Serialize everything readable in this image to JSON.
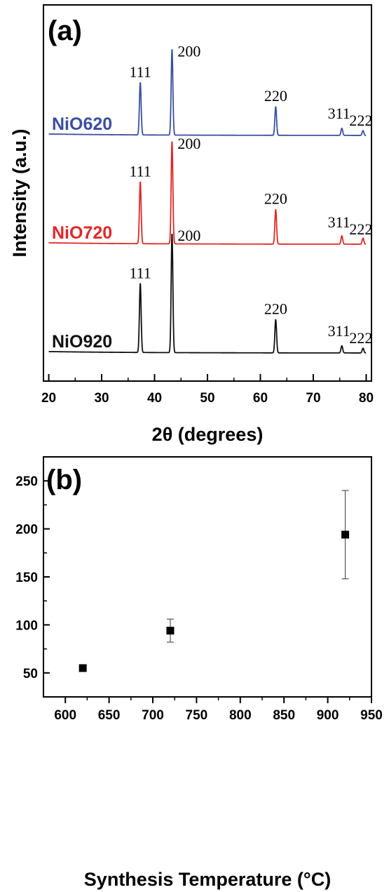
{
  "chart_data": [
    {
      "type": "line",
      "panel_label": "(a)",
      "xlabel": "2θ (degrees)",
      "ylabel": "Intensity (a.u.)",
      "xlim": [
        19,
        81
      ],
      "xticks": [
        "20",
        "30",
        "40",
        "50",
        "60",
        "70",
        "80"
      ],
      "y_ticks_shown": false,
      "series": [
        {
          "name": "NiO620",
          "color": "#3a4fa0",
          "offset": 2.0,
          "peaks": [
            {
              "x": 37.3,
              "height": 0.44,
              "label": "111"
            },
            {
              "x": 43.3,
              "height": 0.72,
              "label": "200"
            },
            {
              "x": 62.9,
              "height": 0.24,
              "label": "220"
            },
            {
              "x": 75.4,
              "height": 0.06,
              "label": "311"
            },
            {
              "x": 79.4,
              "height": 0.04,
              "label": "222"
            }
          ]
        },
        {
          "name": "NiO720",
          "color": "#e0282a",
          "offset": 1.0,
          "peaks": [
            {
              "x": 37.3,
              "height": 0.52,
              "label": "111"
            },
            {
              "x": 43.3,
              "height": 0.86,
              "label": "200"
            },
            {
              "x": 62.9,
              "height": 0.29,
              "label": "220"
            },
            {
              "x": 75.4,
              "height": 0.07,
              "label": "311"
            },
            {
              "x": 79.4,
              "height": 0.05,
              "label": "222"
            }
          ]
        },
        {
          "name": "NiO920",
          "color": "#111111",
          "offset": 0.0,
          "peaks": [
            {
              "x": 37.3,
              "height": 0.58,
              "label": "111"
            },
            {
              "x": 43.3,
              "height": 1.0,
              "label": "200"
            },
            {
              "x": 62.9,
              "height": 0.28,
              "label": "220"
            },
            {
              "x": 75.4,
              "height": 0.06,
              "label": "311"
            },
            {
              "x": 79.4,
              "height": 0.04,
              "label": "222"
            }
          ]
        }
      ]
    },
    {
      "type": "scatter",
      "panel_label": "(b)",
      "xlabel": "Synthesis Temperature (°C)",
      "ylabel": "",
      "xlim": [
        575,
        950
      ],
      "ylim": [
        25,
        275
      ],
      "xticks": [
        "600",
        "650",
        "700",
        "750",
        "800",
        "850",
        "900",
        "950"
      ],
      "yticks": [
        "50",
        "100",
        "150",
        "200",
        "250"
      ],
      "points": [
        {
          "x": 620,
          "y": 55,
          "err": 3
        },
        {
          "x": 720,
          "y": 94,
          "err": 12
        },
        {
          "x": 920,
          "y": 194,
          "err": 46
        }
      ]
    }
  ]
}
